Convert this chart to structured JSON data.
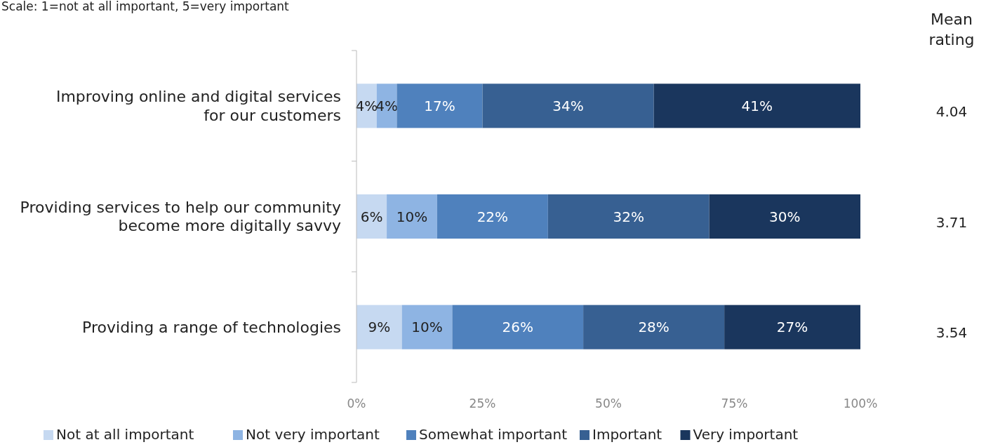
{
  "chart_data": {
    "type": "bar",
    "orientation": "horizontal",
    "stacked": true,
    "subtitle": "Scale: 1=not at all important, 5=very important",
    "categories": [
      "Improving online and digital services for our customers",
      "Providing services to help our community become more digitally savvy",
      "Providing a range of technologies"
    ],
    "series": [
      {
        "name": "Not at all important",
        "color": "#c6d9f1",
        "values": [
          4,
          6,
          9
        ],
        "value_labels": [
          "4%",
          "6%",
          "9%"
        ]
      },
      {
        "name": "Not very important",
        "color": "#8eb4e3",
        "values": [
          4,
          10,
          10
        ],
        "value_labels": [
          "4%",
          "10%",
          "10%"
        ]
      },
      {
        "name": "Somewhat important",
        "color": "#4f81bd",
        "values": [
          17,
          22,
          26
        ],
        "value_labels": [
          "17%",
          "22%",
          "26%"
        ]
      },
      {
        "name": "Important",
        "color": "#376092",
        "values": [
          34,
          32,
          28
        ],
        "value_labels": [
          "34%",
          "32%",
          "28%"
        ]
      },
      {
        "name": "Very important",
        "color": "#1a365d",
        "values": [
          41,
          30,
          27
        ],
        "value_labels": [
          "41%",
          "30%",
          "27%"
        ]
      }
    ],
    "xlim": [
      0,
      100
    ],
    "xticks": [
      {
        "value": 0,
        "label": "0%"
      },
      {
        "value": 25,
        "label": "25%"
      },
      {
        "value": 50,
        "label": "50%"
      },
      {
        "value": 75,
        "label": "75%"
      },
      {
        "value": 100,
        "label": "100%"
      }
    ],
    "legend": "bottom",
    "annotations": [
      "Mean rating",
      "4.04",
      "3.71",
      "3.54"
    ]
  }
}
